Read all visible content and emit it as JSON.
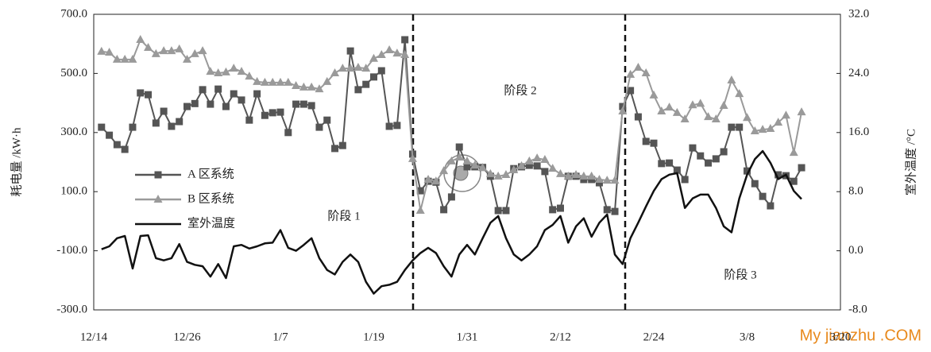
{
  "chart_data": {
    "type": "line",
    "ylabel": "耗电量 /kW·h",
    "y2label": "室外温度 /°C",
    "annotations": [
      "阶段 1",
      "阶段 2",
      "阶段 3"
    ],
    "watermark": "My jianzhu .COM",
    "categories": [
      "12/14",
      null,
      null,
      null,
      null,
      null,
      null,
      null,
      null,
      null,
      null,
      null,
      "12/26",
      null,
      null,
      null,
      null,
      null,
      null,
      null,
      null,
      null,
      null,
      null,
      "1/7",
      null,
      null,
      null,
      null,
      null,
      null,
      null,
      null,
      null,
      null,
      null,
      "1/19",
      null,
      null,
      null,
      null,
      null,
      null,
      null,
      null,
      null,
      null,
      null,
      "1/31",
      null,
      null,
      null,
      null,
      null,
      null,
      null,
      null,
      null,
      null,
      null,
      "2/12",
      null,
      null,
      null,
      null,
      null,
      null,
      null,
      null,
      null,
      null,
      null,
      "2/24",
      null,
      null,
      null,
      null,
      null,
      null,
      null,
      null,
      null,
      null,
      null,
      "3/8",
      null,
      null,
      null,
      null,
      null,
      null,
      null,
      null,
      null,
      null,
      null,
      "3/20"
    ],
    "ylim": [
      -300,
      700
    ],
    "yticks": [
      {
        "value": -300,
        "label": "-300.0"
      },
      {
        "value": -100,
        "label": "-100.0"
      },
      {
        "value": 100,
        "label": "100.0"
      },
      {
        "value": 300,
        "label": "300.0"
      },
      {
        "value": 500,
        "label": "500.0"
      },
      {
        "value": 700,
        "label": "700.0"
      }
    ],
    "y2lim": [
      -8,
      32
    ],
    "y2ticks": [
      {
        "value": -8,
        "label": "-8.0"
      },
      {
        "value": 0,
        "label": "0.0"
      },
      {
        "value": 8,
        "label": "8.0"
      },
      {
        "value": 16,
        "label": "16.0"
      },
      {
        "value": 24,
        "label": "24.0"
      },
      {
        "value": 32,
        "label": "32.0"
      }
    ],
    "series": [
      {
        "name": "A 区系统",
        "color": "#555555",
        "marker": "square",
        "values": [
          null,
          318,
          291,
          259,
          243,
          318,
          434,
          428,
          332,
          372,
          321,
          337,
          388,
          398,
          445,
          396,
          447,
          388,
          431,
          410,
          342,
          431,
          358,
          367,
          369,
          300,
          396,
          396,
          391,
          318,
          342,
          246,
          256,
          576,
          445,
          463,
          488,
          509,
          321,
          324,
          614,
          227,
          103,
          135,
          132,
          39,
          82,
          251,
          184,
          184,
          182,
          152,
          36,
          36,
          178,
          184,
          189,
          187,
          168,
          39,
          44,
          152,
          152,
          141,
          141,
          130,
          39,
          33,
          388,
          442,
          353,
          270,
          264,
          195,
          197,
          173,
          141,
          248,
          221,
          197,
          211,
          235,
          318,
          318,
          170,
          127,
          84,
          52,
          157,
          154,
          135,
          181,
          null,
          null,
          null,
          null,
          null
        ]
      },
      {
        "name": "B 区系统",
        "color": "#9a9a9a",
        "marker": "triangle",
        "values": [
          null,
          574,
          571,
          547,
          547,
          547,
          614,
          587,
          566,
          576,
          576,
          582,
          547,
          566,
          576,
          506,
          501,
          504,
          517,
          506,
          490,
          472,
          469,
          469,
          469,
          469,
          458,
          453,
          453,
          447,
          472,
          501,
          517,
          517,
          520,
          517,
          550,
          563,
          579,
          568,
          563,
          211,
          36,
          141,
          135,
          170,
          203,
          216,
          203,
          189,
          181,
          160,
          152,
          157,
          173,
          187,
          203,
          213,
          208,
          178,
          160,
          152,
          157,
          152,
          152,
          141,
          138,
          138,
          372,
          496,
          520,
          501,
          426,
          372,
          385,
          367,
          345,
          393,
          398,
          353,
          345,
          391,
          477,
          431,
          350,
          305,
          310,
          313,
          334,
          358,
          232,
          369,
          null,
          null,
          null,
          null,
          null
        ]
      },
      {
        "name": "室外温度",
        "color": "#111111",
        "axis": "y2",
        "values": [
          null,
          0.2,
          0.6,
          1.7,
          2.0,
          -2.4,
          2.0,
          2.1,
          -1.0,
          -1.3,
          -1.0,
          0.9,
          -1.5,
          -1.9,
          -2.1,
          -3.5,
          -1.8,
          -3.7,
          0.6,
          0.8,
          0.3,
          0.6,
          1.0,
          1.1,
          2.8,
          0.4,
          0,
          0.8,
          1.7,
          -1.0,
          -2.6,
          -3.2,
          -1.5,
          -0.5,
          -1.5,
          -4.2,
          -5.8,
          -4.8,
          -4.6,
          -4.2,
          -2.6,
          -1.3,
          -0.3,
          0.4,
          -0.3,
          -2.1,
          -3.5,
          -0.5,
          0.8,
          -0.5,
          1.7,
          3.8,
          4.7,
          1.7,
          -0.5,
          -1.3,
          -0.5,
          0.6,
          2.8,
          3.5,
          4.7,
          1.1,
          3.3,
          4.4,
          1.9,
          3.8,
          4.9,
          -0.5,
          -1.8,
          1.7,
          3.8,
          6.0,
          8.1,
          9.7,
          10.3,
          10.5,
          5.8,
          7.1,
          7.6,
          7.6,
          5.8,
          3.3,
          2.5,
          7.1,
          10.3,
          12.4,
          13.5,
          11.9,
          9.7,
          10.3,
          8.1,
          7.0,
          null,
          null,
          null,
          null,
          null
        ]
      }
    ]
  }
}
